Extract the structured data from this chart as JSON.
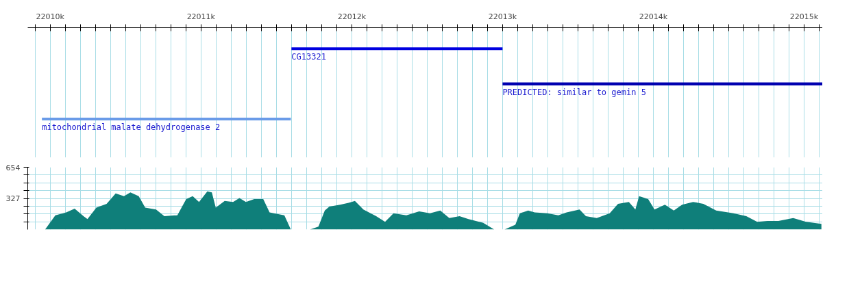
{
  "chart_data": [
    {
      "type": "bar",
      "orientation": "horizontal",
      "tick_labels": "x",
      "categories": [
        "CG13321",
        "PREDICTED: similar to gemin 5",
        "mitochondrial malate dehydrogenase 2"
      ],
      "base": [
        22011600,
        22013000,
        22009945
      ],
      "values": [
        1400,
        2123,
        1651
      ],
      "colors": [
        "#0000e0",
        "#0000b0",
        "#6a9be8"
      ],
      "xlim": [
        22009851,
        22015123
      ],
      "xticks": [
        {
          "value": 22009900,
          "label": null
        },
        {
          "value": 22010000,
          "label": "22010k"
        },
        {
          "value": 22010100,
          "label": null
        },
        {
          "value": 22010200,
          "label": null
        },
        {
          "value": 22010300,
          "label": null
        },
        {
          "value": 22010400,
          "label": null
        },
        {
          "value": 22010500,
          "label": null
        },
        {
          "value": 22010600,
          "label": null
        },
        {
          "value": 22010700,
          "label": null
        },
        {
          "value": 22010800,
          "label": null
        },
        {
          "value": 22010900,
          "label": null
        },
        {
          "value": 22011000,
          "label": "22011k"
        },
        {
          "value": 22011100,
          "label": null
        },
        {
          "value": 22011200,
          "label": null
        },
        {
          "value": 22011300,
          "label": null
        },
        {
          "value": 22011400,
          "label": null
        },
        {
          "value": 22011500,
          "label": null
        },
        {
          "value": 22011600,
          "label": null
        },
        {
          "value": 22011700,
          "label": null
        },
        {
          "value": 22011800,
          "label": null
        },
        {
          "value": 22011900,
          "label": null
        },
        {
          "value": 22012000,
          "label": "22012k"
        },
        {
          "value": 22012100,
          "label": null
        },
        {
          "value": 22012200,
          "label": null
        },
        {
          "value": 22012300,
          "label": null
        },
        {
          "value": 22012400,
          "label": null
        },
        {
          "value": 22012500,
          "label": null
        },
        {
          "value": 22012600,
          "label": null
        },
        {
          "value": 22012700,
          "label": null
        },
        {
          "value": 22012800,
          "label": null
        },
        {
          "value": 22012900,
          "label": null
        },
        {
          "value": 22013000,
          "label": "22013k"
        },
        {
          "value": 22013100,
          "label": null
        },
        {
          "value": 22013200,
          "label": null
        },
        {
          "value": 22013300,
          "label": null
        },
        {
          "value": 22013400,
          "label": null
        },
        {
          "value": 22013500,
          "label": null
        },
        {
          "value": 22013600,
          "label": null
        },
        {
          "value": 22013700,
          "label": null
        },
        {
          "value": 22013800,
          "label": null
        },
        {
          "value": 22013900,
          "label": null
        },
        {
          "value": 22014000,
          "label": "22014k"
        },
        {
          "value": 22014100,
          "label": null
        },
        {
          "value": 22014200,
          "label": null
        },
        {
          "value": 22014300,
          "label": null
        },
        {
          "value": 22014400,
          "label": null
        },
        {
          "value": 22014500,
          "label": null
        },
        {
          "value": 22014600,
          "label": null
        },
        {
          "value": 22014700,
          "label": null
        },
        {
          "value": 22014800,
          "label": null
        },
        {
          "value": 22014900,
          "label": null
        },
        {
          "value": 22015000,
          "label": "22015k"
        },
        {
          "value": 22015100,
          "label": null
        }
      ],
      "grid": "x"
    },
    {
      "type": "area",
      "tick_labels": "y",
      "xticks": [
        {
          "value": 22009900,
          "label": null
        },
        {
          "value": 22010000,
          "label": null
        },
        {
          "value": 22010100,
          "label": null
        },
        {
          "value": 22010200,
          "label": null
        },
        {
          "value": 22010300,
          "label": null
        },
        {
          "value": 22010400,
          "label": null
        },
        {
          "value": 22010500,
          "label": null
        },
        {
          "value": 22010600,
          "label": null
        },
        {
          "value": 22010700,
          "label": null
        },
        {
          "value": 22010800,
          "label": null
        },
        {
          "value": 22010900,
          "label": null
        },
        {
          "value": 22011000,
          "label": null
        },
        {
          "value": 22011100,
          "label": null
        },
        {
          "value": 22011200,
          "label": null
        },
        {
          "value": 22011300,
          "label": null
        },
        {
          "value": 22011400,
          "label": null
        },
        {
          "value": 22011500,
          "label": null
        },
        {
          "value": 22011600,
          "label": null
        },
        {
          "value": 22011700,
          "label": null
        },
        {
          "value": 22011800,
          "label": null
        },
        {
          "value": 22011900,
          "label": null
        },
        {
          "value": 22012000,
          "label": null
        },
        {
          "value": 22012100,
          "label": null
        },
        {
          "value": 22012200,
          "label": null
        },
        {
          "value": 22012300,
          "label": null
        },
        {
          "value": 22012400,
          "label": null
        },
        {
          "value": 22012500,
          "label": null
        },
        {
          "value": 22012600,
          "label": null
        },
        {
          "value": 22012700,
          "label": null
        },
        {
          "value": 22012800,
          "label": null
        },
        {
          "value": 22012900,
          "label": null
        },
        {
          "value": 22013000,
          "label": null
        },
        {
          "value": 22013100,
          "label": null
        },
        {
          "value": 22013200,
          "label": null
        },
        {
          "value": 22013300,
          "label": null
        },
        {
          "value": 22013400,
          "label": null
        },
        {
          "value": 22013500,
          "label": null
        },
        {
          "value": 22013600,
          "label": null
        },
        {
          "value": 22013700,
          "label": null
        },
        {
          "value": 22013800,
          "label": null
        },
        {
          "value": 22013900,
          "label": null
        },
        {
          "value": 22014000,
          "label": null
        },
        {
          "value": 22014100,
          "label": null
        },
        {
          "value": 22014200,
          "label": null
        },
        {
          "value": 22014300,
          "label": null
        },
        {
          "value": 22014400,
          "label": null
        },
        {
          "value": 22014500,
          "label": null
        },
        {
          "value": 22014600,
          "label": null
        },
        {
          "value": 22014700,
          "label": null
        },
        {
          "value": 22014800,
          "label": null
        },
        {
          "value": 22014900,
          "label": null
        },
        {
          "value": 22015000,
          "label": null
        },
        {
          "value": 22015100,
          "label": null
        }
      ],
      "x": [
        22009885,
        22009966,
        22010034,
        22010106,
        22010162,
        22010221,
        22010247,
        22010306,
        22010374,
        22010434,
        22010489,
        22010532,
        22010587,
        22010630,
        22010702,
        22010757,
        22010843,
        22010902,
        22010945,
        22010987,
        22011042,
        22011072,
        22011098,
        22011157,
        22011213,
        22011255,
        22011298,
        22011353,
        22011413,
        22011455,
        22011553,
        22011596,
        22011651,
        22011723,
        22011779,
        22011821,
        22011851,
        22011923,
        22011979,
        22012021,
        22012077,
        22012162,
        22012221,
        22012277,
        22012362,
        22012447,
        22012519,
        22012587,
        22012647,
        22012715,
        22012774,
        22012872,
        22012945,
        22013013,
        22013085,
        22013115,
        22013170,
        22013213,
        22013298,
        22013370,
        22013425,
        22013511,
        22013553,
        22013625,
        22013711,
        22013766,
        22013838,
        22013881,
        22013906,
        22013966,
        22014008,
        22014077,
        22014136,
        22014191,
        22014264,
        22014332,
        22014417,
        22014532,
        22014617,
        22014689,
        22014757,
        22014830,
        22014928,
        22015013,
        22015115
      ],
      "series": [
        {
          "color": "#0f7f7a",
          "values": [
            0,
            0,
            150,
            180,
            220,
            140,
            110,
            230,
            270,
            380,
            350,
            390,
            350,
            230,
            210,
            140,
            150,
            320,
            350,
            290,
            400,
            390,
            230,
            300,
            290,
            330,
            290,
            320,
            320,
            180,
            150,
            0,
            0,
            0,
            30,
            200,
            240,
            260,
            280,
            300,
            210,
            140,
            80,
            170,
            150,
            190,
            170,
            200,
            120,
            140,
            110,
            70,
            0,
            0,
            50,
            170,
            200,
            180,
            170,
            150,
            180,
            210,
            140,
            120,
            170,
            270,
            290,
            210,
            350,
            320,
            210,
            260,
            200,
            260,
            290,
            270,
            200,
            170,
            140,
            80,
            90,
            90,
            120,
            80,
            60
          ]
        }
      ],
      "xlim": [
        22009851,
        22015123
      ],
      "ylim": [
        0,
        654
      ],
      "yticks": [
        {
          "value": 82,
          "label": null
        },
        {
          "value": 164,
          "label": null
        },
        {
          "value": 245,
          "label": null
        },
        327,
        {
          "value": 409,
          "label": null
        },
        {
          "value": 490,
          "label": null
        },
        {
          "value": 572,
          "label": null
        },
        654
      ],
      "grid": true
    }
  ]
}
